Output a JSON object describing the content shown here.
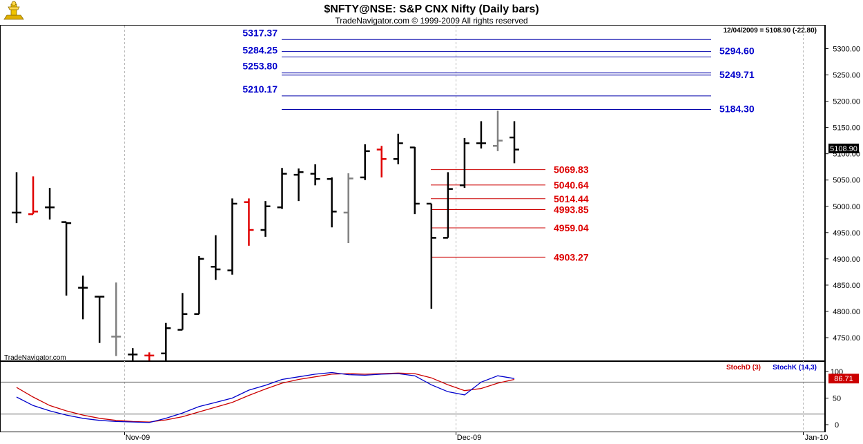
{
  "header": {
    "title": "$NFTY@NSE:  S&P CNX Nifty  (Daily bars)",
    "copyright": "TradeNavigator.com © 1999-2009 All rights reserved",
    "last_value_note": "12/04/2009 = 5108.90 (-22.80)",
    "watermark": "TradeNavigator.com",
    "current_price_label": "5108.90"
  },
  "colors": {
    "bar_up": "#000000",
    "bar_down": "#e00000",
    "bar_neutral": "#808080",
    "resistance": "#0000aa",
    "support": "#cc0000",
    "stoch_d": "#cc0000",
    "stoch_k": "#0000cc",
    "price_box_bg": "#000000",
    "stoch_box_bg": "#cc0000"
  },
  "chart_data": [
    {
      "type": "ohlc",
      "ylim": [
        4720,
        5340
      ],
      "y_ticks": [
        4750,
        4800,
        4850,
        4900,
        4950,
        5000,
        5050,
        5100,
        5150,
        5200,
        5250,
        5300
      ],
      "y_tick_labels": [
        "4750.00",
        "4800.00",
        "4850.00",
        "4900.00",
        "4950.00",
        "5000.00",
        "5050.00",
        "5100.00",
        "5150.00",
        "5200.00",
        "5250.00",
        "5300.00"
      ],
      "x_labels": [
        "Nov-09",
        "Dec-09",
        "Jan-10"
      ],
      "grid": "vertical dashed at month starts",
      "bars": [
        {
          "o": 4988,
          "h": 5065,
          "l": 4968,
          "c": 4988,
          "color": "black"
        },
        {
          "o": 4985,
          "h": 5057,
          "l": 4985,
          "c": 4990,
          "color": "red"
        },
        {
          "o": 4998,
          "h": 5035,
          "l": 4975,
          "c": 4998,
          "color": "black"
        },
        {
          "o": 4970,
          "h": 4970,
          "l": 4830,
          "c": 4968,
          "color": "black"
        },
        {
          "o": 4845,
          "h": 4868,
          "l": 4785,
          "c": 4845,
          "color": "black"
        },
        {
          "o": 4828,
          "h": 4828,
          "l": 4740,
          "c": 4828,
          "color": "black"
        },
        {
          "o": 4752,
          "h": 4855,
          "l": 4715,
          "c": 4752,
          "color": "gray"
        },
        {
          "o": 4718,
          "h": 4730,
          "l": 4700,
          "c": 4718,
          "color": "black"
        },
        {
          "o": 4716,
          "h": 4722,
          "l": 4700,
          "c": 4716,
          "color": "red"
        },
        {
          "o": 4720,
          "h": 4778,
          "l": 4705,
          "c": 4768,
          "color": "black"
        },
        {
          "o": 4765,
          "h": 4835,
          "l": 4765,
          "c": 4795,
          "color": "black"
        },
        {
          "o": 4795,
          "h": 4905,
          "l": 4795,
          "c": 4900,
          "color": "black"
        },
        {
          "o": 4885,
          "h": 4945,
          "l": 4860,
          "c": 4880,
          "color": "black"
        },
        {
          "o": 4878,
          "h": 5015,
          "l": 4870,
          "c": 5005,
          "color": "black"
        },
        {
          "o": 5008,
          "h": 5015,
          "l": 4925,
          "c": 4955,
          "color": "red"
        },
        {
          "o": 4955,
          "h": 5010,
          "l": 4942,
          "c": 5000,
          "color": "black"
        },
        {
          "o": 4998,
          "h": 5073,
          "l": 4995,
          "c": 5062,
          "color": "black"
        },
        {
          "o": 5060,
          "h": 5072,
          "l": 5010,
          "c": 5065,
          "color": "black"
        },
        {
          "o": 5062,
          "h": 5080,
          "l": 5040,
          "c": 5052,
          "color": "black"
        },
        {
          "o": 5052,
          "h": 5055,
          "l": 4960,
          "c": 4990,
          "color": "black"
        },
        {
          "o": 4988,
          "h": 5063,
          "l": 4930,
          "c": 5053,
          "color": "gray"
        },
        {
          "o": 5055,
          "h": 5118,
          "l": 5050,
          "c": 5105,
          "color": "black"
        },
        {
          "o": 5108,
          "h": 5115,
          "l": 5055,
          "c": 5090,
          "color": "red"
        },
        {
          "o": 5090,
          "h": 5138,
          "l": 5080,
          "c": 5120,
          "color": "black"
        },
        {
          "o": 5112,
          "h": 5113,
          "l": 4985,
          "c": 5005,
          "color": "black"
        },
        {
          "o": 5005,
          "h": 5005,
          "l": 4805,
          "c": 4940,
          "color": "black"
        },
        {
          "o": 4940,
          "h": 5065,
          "l": 4940,
          "c": 5033,
          "color": "black"
        },
        {
          "o": 5040,
          "h": 5130,
          "l": 5035,
          "c": 5120,
          "color": "black"
        },
        {
          "o": 5120,
          "h": 5162,
          "l": 5110,
          "c": 5120,
          "color": "black"
        },
        {
          "o": 5115,
          "h": 5182,
          "l": 5105,
          "c": 5125,
          "color": "gray"
        },
        {
          "o": 5131,
          "h": 5162,
          "l": 5082,
          "c": 5108,
          "color": "black"
        }
      ],
      "resistance_levels": [
        5317.37,
        5294.6,
        5284.25,
        5253.8,
        5249.71,
        5210.17,
        5184.3
      ],
      "resistance_labels": [
        "5317.37",
        "5294.60",
        "5284.25",
        "5253.80",
        "5249.71",
        "5210.17",
        "5184.30"
      ],
      "support_levels": [
        5069.83,
        5040.64,
        5014.44,
        4993.85,
        4959.04,
        4903.27
      ],
      "support_labels": [
        "5069.83",
        "5040.64",
        "5014.44",
        "4993.85",
        "4959.04",
        "4903.27"
      ]
    },
    {
      "type": "line",
      "ylim": [
        -10,
        115
      ],
      "y_ticks": [
        0,
        50,
        100
      ],
      "y_tick_labels": [
        "0",
        "50",
        "100"
      ],
      "reference_lines": [
        80,
        20
      ],
      "last_value_label": "86.71",
      "series": [
        {
          "name": "StochD (3)",
          "values": [
            70,
            52,
            36,
            26,
            18,
            12,
            8,
            6,
            5,
            9,
            15,
            24,
            33,
            42,
            55,
            67,
            78,
            85,
            90,
            95,
            96,
            95,
            96,
            97,
            96,
            88,
            75,
            64,
            68,
            78,
            85
          ]
        },
        {
          "name": "StochK (14,3)",
          "values": [
            52,
            36,
            26,
            18,
            12,
            8,
            6,
            5,
            4,
            12,
            22,
            34,
            42,
            50,
            65,
            74,
            85,
            90,
            95,
            98,
            94,
            93,
            95,
            96,
            92,
            75,
            62,
            56,
            80,
            92,
            86.71
          ]
        }
      ]
    }
  ]
}
